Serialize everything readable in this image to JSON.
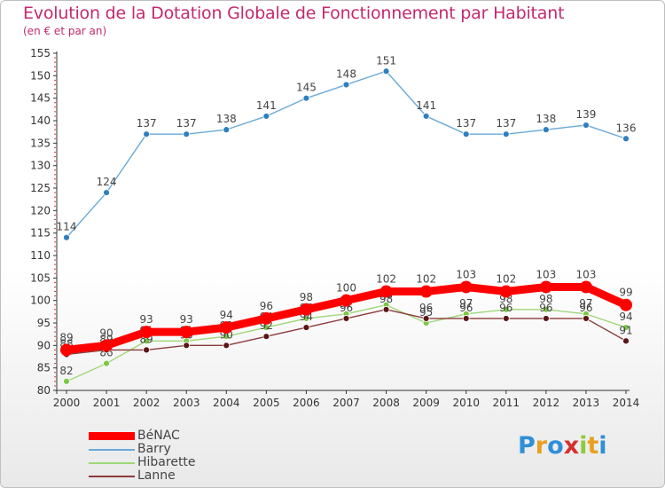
{
  "header": {
    "title": "Evolution de la Dotation Globale de Fonctionnement par Habitant",
    "subtitle": "(en € et par an)"
  },
  "logo": {
    "letters": [
      "P",
      "r",
      "o",
      "x",
      "i",
      "t",
      "i"
    ],
    "colors": [
      "#2f8fd8",
      "#e8a020",
      "#2f8fd8",
      "#d63030",
      "#8ccc3c",
      "#e8a020",
      "#2f8fd8"
    ]
  },
  "chart_data": {
    "type": "line",
    "x": [
      "2000",
      "2001",
      "2002",
      "2003",
      "2004",
      "2005",
      "2006",
      "2007",
      "2008",
      "2009",
      "2010",
      "2011",
      "2012",
      "2013",
      "2014"
    ],
    "ylim": [
      80,
      155
    ],
    "yticks": [
      "80",
      "85",
      "90",
      "95",
      "100",
      "105",
      "110",
      "115",
      "120",
      "125",
      "130",
      "135",
      "140",
      "145",
      "150",
      "155"
    ],
    "grid": false,
    "legend_position": "bottom-left",
    "series": [
      {
        "name": "Barry",
        "color": "#6aa9d8",
        "marker": "#2e7fc0",
        "values": [
          114,
          124,
          137,
          137,
          138,
          141,
          145,
          148,
          151,
          141,
          137,
          137,
          138,
          139,
          136
        ],
        "labels": [
          "114",
          "124",
          "137",
          "137",
          "138",
          "141",
          "145",
          "148",
          "151",
          "141",
          "137",
          "137",
          "138",
          "139",
          "136"
        ]
      },
      {
        "name": "Hibarette",
        "color": "#9fd77a",
        "marker": "#7cc843",
        "values": [
          82,
          86,
          91,
          91,
          92,
          94,
          96,
          97,
          99,
          95,
          97,
          98,
          98,
          97,
          94
        ],
        "labels": [
          "82",
          "86",
          "91",
          "91",
          "92",
          "94",
          "96",
          "97",
          "99",
          "95",
          "97",
          "98",
          "98",
          "97",
          "94"
        ]
      },
      {
        "name": "Lanne",
        "color": "#8a3b3b",
        "marker": "#5a1515",
        "values": [
          88,
          89,
          89,
          90,
          90,
          92,
          94,
          96,
          98,
          96,
          96,
          96,
          96,
          96,
          91
        ],
        "labels": [
          "88",
          "89",
          "89",
          "90",
          "90",
          "92",
          "94",
          "96",
          "98",
          "96",
          "96",
          "96",
          "96",
          "96",
          "91"
        ]
      },
      {
        "name": "BéNAC",
        "color": "#ff0000",
        "marker": "#ff0000",
        "values": [
          89,
          90,
          93,
          93,
          94,
          96,
          98,
          100,
          102,
          102,
          103,
          102,
          103,
          103,
          99
        ],
        "labels": [
          "89",
          "90",
          "93",
          "93",
          "94",
          "96",
          "98",
          "100",
          "102",
          "102",
          "103",
          "102",
          "103",
          "103",
          "99"
        ]
      }
    ]
  },
  "legend": [
    {
      "name": "BéNAC",
      "color": "#ff0000"
    },
    {
      "name": "Barry",
      "color": "#6aa9d8"
    },
    {
      "name": "Hibarette",
      "color": "#9fd77a"
    },
    {
      "name": "Lanne",
      "color": "#8a3b3b"
    }
  ]
}
